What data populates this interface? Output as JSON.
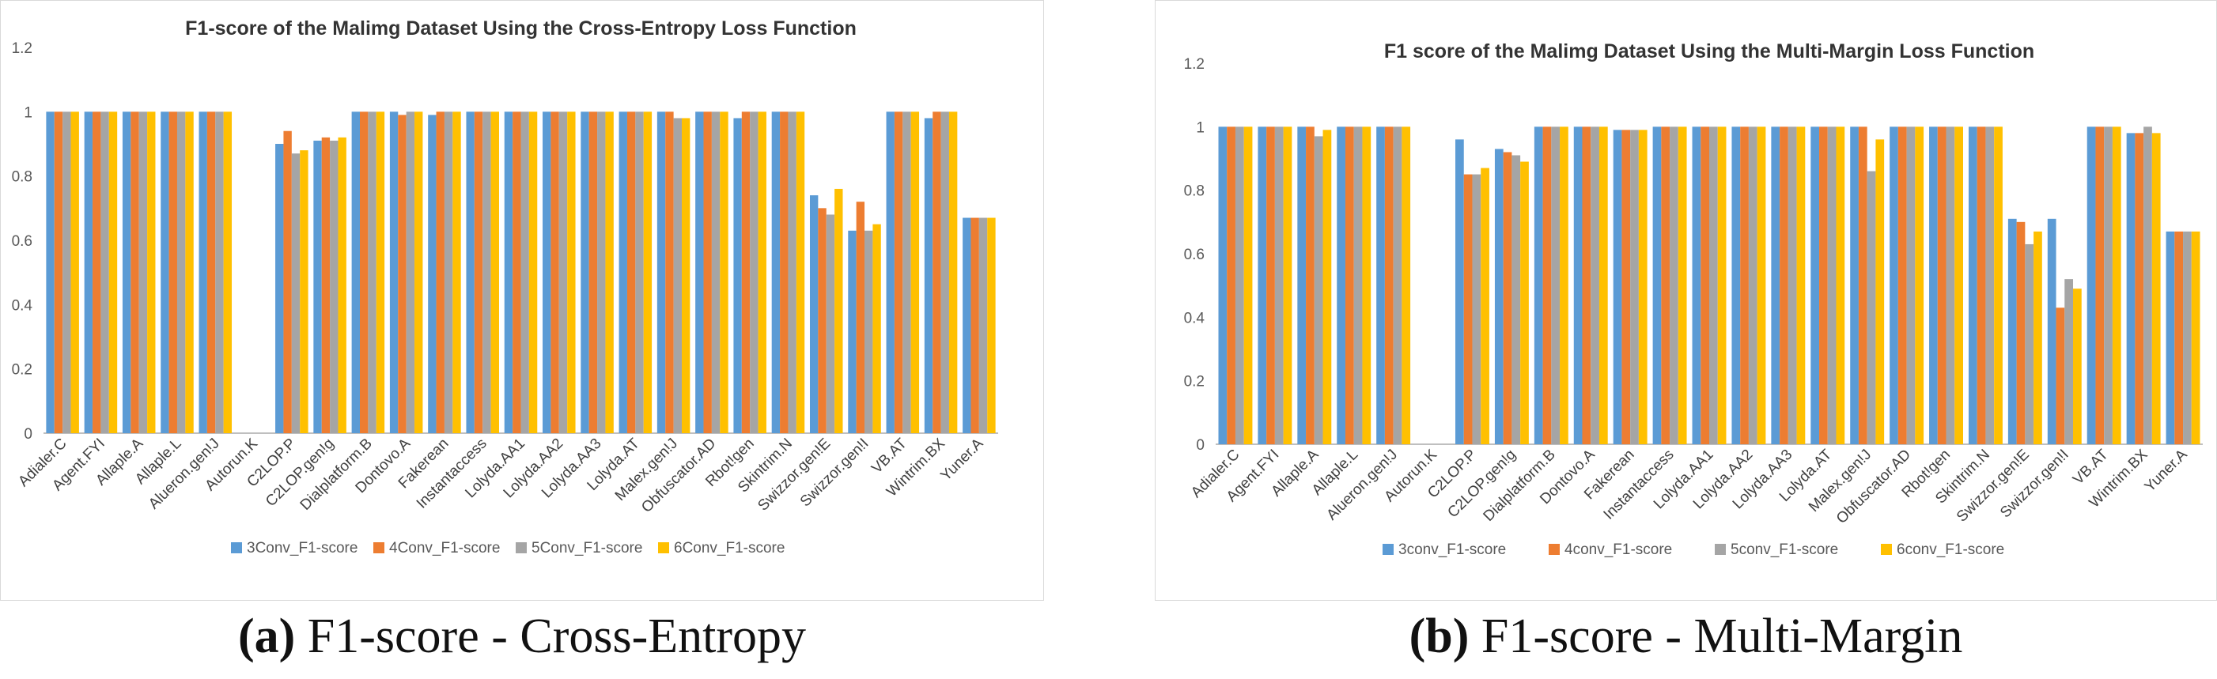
{
  "chart_data": [
    {
      "id": "a",
      "type": "bar",
      "title": "F1-score of the Malimg Dataset Using the Cross-Entropy Loss Function",
      "caption_label": "(a)",
      "caption_text": "F1-score - Cross-Entropy",
      "xlabel": "",
      "ylabel": "",
      "ylim": [
        0,
        1.2
      ],
      "yticks": [
        "0",
        "0.2",
        "0.4",
        "0.6",
        "0.8",
        "1",
        "1.2"
      ],
      "grid": false,
      "legend_position": "bottom",
      "categories": [
        "Adialer.C",
        "Agent.FYI",
        "Allaple.A",
        "Allaple.L",
        "Alueron.gen!J",
        "Autorun.K",
        "C2LOP.P",
        "C2LOP.gen!g",
        "Dialplatform.B",
        "Dontovo.A",
        "Fakerean",
        "Instantaccess",
        "Lolyda.AA1",
        "Lolyda.AA2",
        "Lolyda.AA3",
        "Lolyda.AT",
        "Malex.gen!J",
        "Obfuscator.AD",
        "Rbot!gen",
        "Skintrim.N",
        "Swizzor.gen!E",
        "Swizzor.gen!I",
        "VB.AT",
        "Wintrim.BX",
        "Yuner.A"
      ],
      "series": [
        {
          "name": "3Conv_F1-score",
          "color": "#5B9BD5",
          "values": [
            1,
            1,
            1,
            1,
            1,
            0,
            0.9,
            0.91,
            1,
            1,
            0.99,
            1,
            1,
            1,
            1,
            1,
            1,
            1,
            0.98,
            1,
            0.74,
            0.63,
            1,
            0.98,
            0.67
          ]
        },
        {
          "name": "4Conv_F1-score",
          "color": "#ED7D31",
          "values": [
            1,
            1,
            1,
            1,
            1,
            0,
            0.94,
            0.92,
            1,
            0.99,
            1,
            1,
            1,
            1,
            1,
            1,
            1,
            1,
            1,
            1,
            0.7,
            0.72,
            1,
            1,
            0.67
          ]
        },
        {
          "name": "5Conv_F1-score",
          "color": "#A5A5A5",
          "values": [
            1,
            1,
            1,
            1,
            1,
            0,
            0.87,
            0.91,
            1,
            1,
            1,
            1,
            1,
            1,
            1,
            1,
            0.98,
            1,
            1,
            1,
            0.68,
            0.63,
            1,
            1,
            0.67
          ]
        },
        {
          "name": "6Conv_F1-score",
          "color": "#FFC000",
          "values": [
            1,
            1,
            1,
            1,
            1,
            0,
            0.88,
            0.92,
            1,
            1,
            1,
            1,
            1,
            1,
            1,
            1,
            0.98,
            1,
            1,
            1,
            0.76,
            0.65,
            1,
            1,
            0.67
          ]
        }
      ]
    },
    {
      "id": "b",
      "type": "bar",
      "title": "F1 score of the Malimg Dataset Using the Multi-Margin Loss Function",
      "caption_label": "(b)",
      "caption_text": "F1-score - Multi-Margin",
      "xlabel": "",
      "ylabel": "",
      "ylim": [
        0,
        1.2
      ],
      "yticks": [
        "0",
        "0.2",
        "0.4",
        "0.6",
        "0.8",
        "1",
        "1.2"
      ],
      "grid": false,
      "legend_position": "bottom",
      "categories": [
        "Adialer.C",
        "Agent.FYI",
        "Allaple.A",
        "Allaple.L",
        "Alueron.gen!J",
        "Autorun.K",
        "C2LOP.P",
        "C2LOP.gen!g",
        "Dialplatform.B",
        "Dontovo.A",
        "Fakerean",
        "Instantaccess",
        "Lolyda.AA1",
        "Lolyda.AA2",
        "Lolyda.AA3",
        "Lolyda.AT",
        "Malex.gen!J",
        "Obfuscator.AD",
        "Rbot!gen",
        "Skintrim.N",
        "Swizzor.gen!E",
        "Swizzor.gen!I",
        "VB.AT",
        "Wintrim.BX",
        "Yuner.A"
      ],
      "series": [
        {
          "name": "3conv_F1-score",
          "color": "#5B9BD5",
          "values": [
            1,
            1,
            1,
            1,
            1,
            0,
            0.96,
            0.93,
            1,
            1,
            0.99,
            1,
            1,
            1,
            1,
            1,
            1,
            1,
            1,
            1,
            0.71,
            0.71,
            1,
            0.98,
            0.67
          ]
        },
        {
          "name": "4conv_F1-score",
          "color": "#ED7D31",
          "values": [
            1,
            1,
            1,
            1,
            1,
            0,
            0.85,
            0.92,
            1,
            1,
            0.99,
            1,
            1,
            1,
            1,
            1,
            1,
            1,
            1,
            1,
            0.7,
            0.43,
            1,
            0.98,
            0.67
          ]
        },
        {
          "name": "5conv_F1-score",
          "color": "#A5A5A5",
          "values": [
            1,
            1,
            0.97,
            1,
            1,
            0,
            0.85,
            0.91,
            1,
            1,
            0.99,
            1,
            1,
            1,
            1,
            1,
            0.86,
            1,
            1,
            1,
            0.63,
            0.52,
            1,
            1,
            0.67
          ]
        },
        {
          "name": "6conv_F1-score",
          "color": "#FFC000",
          "values": [
            1,
            1,
            0.99,
            1,
            1,
            0,
            0.87,
            0.89,
            1,
            1,
            0.99,
            1,
            1,
            1,
            1,
            1,
            0.96,
            1,
            1,
            1,
            0.67,
            0.49,
            1,
            0.98,
            0.67
          ]
        }
      ]
    }
  ]
}
